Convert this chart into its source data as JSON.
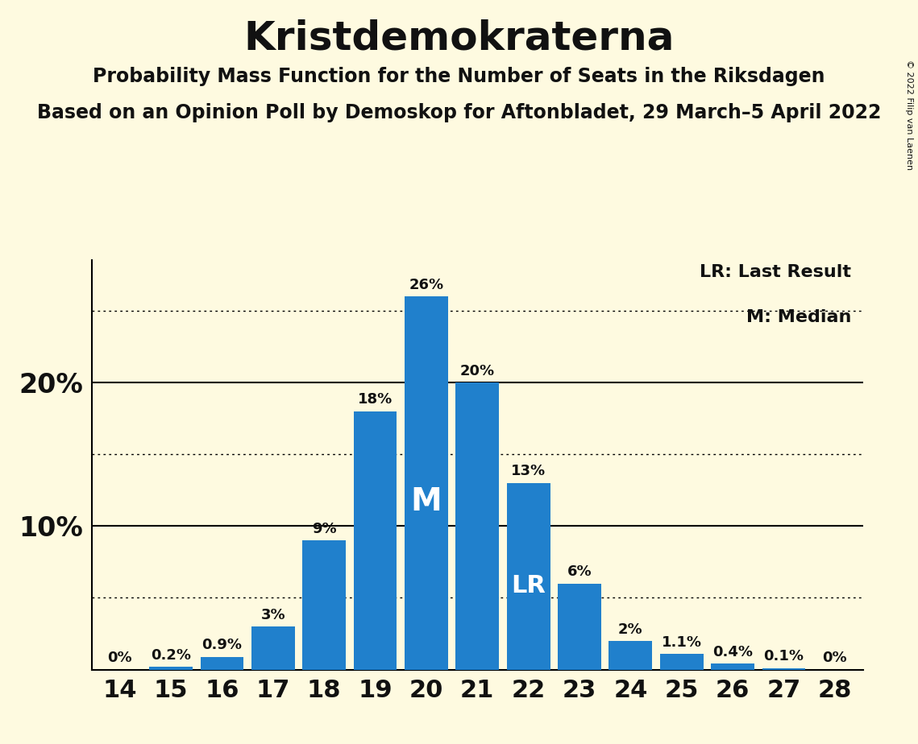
{
  "title": "Kristdemokraterna",
  "subtitle1": "Probability Mass Function for the Number of Seats in the Riksdagen",
  "subtitle2": "Based on an Opinion Poll by Demoskop for Aftonbladet, 29 March–5 April 2022",
  "copyright": "© 2022 Filip van Laenen",
  "seats": [
    14,
    15,
    16,
    17,
    18,
    19,
    20,
    21,
    22,
    23,
    24,
    25,
    26,
    27,
    28
  ],
  "probabilities": [
    0.0,
    0.2,
    0.9,
    3.0,
    9.0,
    18.0,
    26.0,
    20.0,
    13.0,
    6.0,
    2.0,
    1.1,
    0.4,
    0.1,
    0.0
  ],
  "bar_labels": [
    "0%",
    "0.2%",
    "0.9%",
    "3%",
    "9%",
    "18%",
    "26%",
    "20%",
    "13%",
    "6%",
    "2%",
    "1.1%",
    "0.4%",
    "0.1%",
    "0%"
  ],
  "bar_color": "#2080CC",
  "background_color": "#FEFAE0",
  "text_color": "#111111",
  "dotted_lines": [
    5,
    15,
    25
  ],
  "solid_lines": [
    10,
    20
  ],
  "median_seat": 20,
  "lr_seat": 22,
  "legend_lr": "LR: Last Result",
  "legend_m": "M: Median",
  "ylim": [
    0,
    28.5
  ],
  "title_fontsize": 36,
  "subtitle_fontsize": 17,
  "label_fontsize": 13,
  "tick_fontsize": 22,
  "ytick_fontsize": 24,
  "legend_fontsize": 16,
  "copyright_fontsize": 8
}
